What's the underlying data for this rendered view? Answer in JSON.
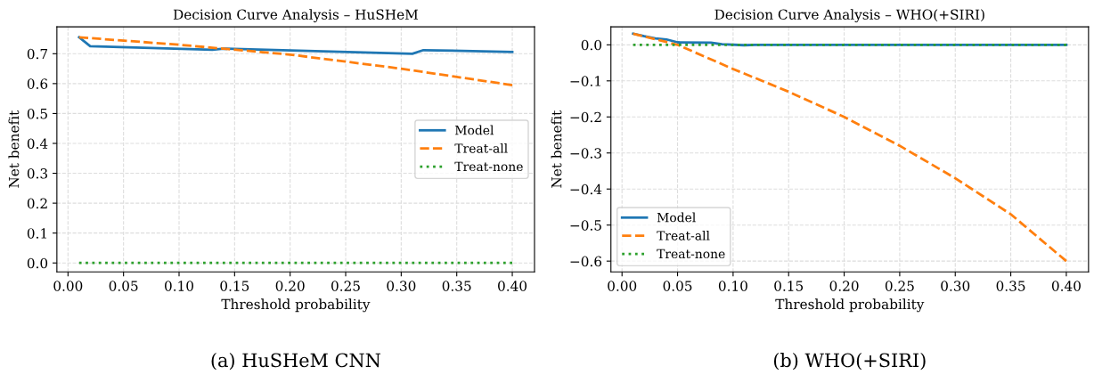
{
  "chart_data": [
    {
      "type": "line",
      "title": "Decision Curve Analysis – HuSHeM",
      "xlabel": "Threshold probability",
      "ylabel": "Net benefit",
      "annotations": [
        "(a) HuSHeM CNN"
      ],
      "xlim": [
        -0.01,
        0.42
      ],
      "xticks": [
        {
          "value": 0,
          "label": "0.00"
        },
        {
          "value": 0.05,
          "label": "0.05"
        },
        {
          "value": 0.1,
          "label": "0.10"
        },
        {
          "value": 0.15,
          "label": "0.15"
        },
        {
          "value": 0.2,
          "label": "0.20"
        },
        {
          "value": 0.25,
          "label": "0.25"
        },
        {
          "value": 0.3,
          "label": "0.30"
        },
        {
          "value": 0.35,
          "label": "0.35"
        },
        {
          "value": 0.4,
          "label": "0.40"
        }
      ],
      "ylim": [
        -0.03,
        0.79
      ],
      "yticks": [
        {
          "value": 0,
          "label": "0.0"
        },
        0.1,
        0.2,
        0.3,
        0.4,
        0.5,
        0.6,
        0.7
      ],
      "grid": true,
      "legend": "center right",
      "series": [
        {
          "name": "Model",
          "color": "#1f77b4",
          "line_style": "solid",
          "x": [
            0.01,
            0.02,
            0.13,
            0.14,
            0.31,
            0.32,
            0.4
          ],
          "values": [
            0.755,
            0.725,
            0.713,
            0.717,
            0.7,
            0.712,
            0.706
          ]
        },
        {
          "name": "Treat-all",
          "color": "#ff7f0e",
          "line_style": "dashed",
          "x": [
            0.01,
            0.1,
            0.2,
            0.3,
            0.4
          ],
          "values": [
            0.755,
            0.73,
            0.697,
            0.65,
            0.595
          ]
        },
        {
          "name": "Treat-none",
          "color": "#2ca02c",
          "line_style": "dotted",
          "x": [
            0.01,
            0.4
          ],
          "values": [
            0,
            0
          ]
        }
      ]
    },
    {
      "type": "line",
      "title": "Decision Curve Analysis – WHO(+SIRI)",
      "xlabel": "Threshold probability",
      "ylabel": "Net benefit",
      "annotations": [
        "(b) WHO(+SIRI)"
      ],
      "xlim": [
        -0.01,
        0.42
      ],
      "xticks": [
        {
          "value": 0,
          "label": "0.00"
        },
        {
          "value": 0.05,
          "label": "0.05"
        },
        {
          "value": 0.1,
          "label": "0.10"
        },
        {
          "value": 0.15,
          "label": "0.15"
        },
        {
          "value": 0.2,
          "label": "0.20"
        },
        {
          "value": 0.25,
          "label": "0.25"
        },
        {
          "value": 0.3,
          "label": "0.30"
        },
        {
          "value": 0.35,
          "label": "0.35"
        },
        {
          "value": 0.4,
          "label": "0.40"
        }
      ],
      "ylim": [
        -0.63,
        0.05
      ],
      "yticks": [
        {
          "value": -0.6,
          "label": "−0.6"
        },
        {
          "value": -0.5,
          "label": "−0.5"
        },
        {
          "value": -0.4,
          "label": "−0.4"
        },
        {
          "value": -0.3,
          "label": "−0.3"
        },
        {
          "value": -0.2,
          "label": "−0.2"
        },
        {
          "value": -0.1,
          "label": "−0.1"
        },
        {
          "value": 0,
          "label": "0.0"
        }
      ],
      "grid": true,
      "legend": "lower left",
      "series": [
        {
          "name": "Model",
          "color": "#1f77b4",
          "line_style": "solid",
          "x": [
            0.01,
            0.02,
            0.03,
            0.04,
            0.05,
            0.08,
            0.09,
            0.11,
            0.12,
            0.4
          ],
          "values": [
            0.031,
            0.024,
            0.018,
            0.015,
            0.007,
            0.006,
            0.002,
            -0.001,
            0.0,
            0.0
          ]
        },
        {
          "name": "Treat-all",
          "color": "#ff7f0e",
          "line_style": "dashed",
          "x": [
            0.01,
            0.05,
            0.1,
            0.15,
            0.2,
            0.25,
            0.3,
            0.35,
            0.4
          ],
          "values": [
            0.031,
            0.0,
            -0.067,
            -0.13,
            -0.2,
            -0.28,
            -0.37,
            -0.47,
            -0.6
          ]
        },
        {
          "name": "Treat-none",
          "color": "#2ca02c",
          "line_style": "dotted",
          "x": [
            0.01,
            0.4
          ],
          "values": [
            0,
            0
          ]
        }
      ]
    }
  ]
}
